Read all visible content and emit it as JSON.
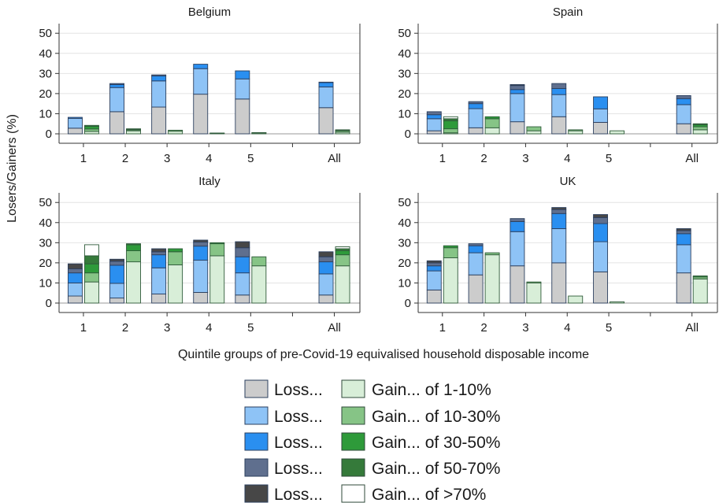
{
  "chart_data": {
    "type": "bar",
    "subtype": "stacked-grouped",
    "ylabel": "Losers/Gainers (%)",
    "xlabel": "Quintile groups of pre-Covid-19 equivalised household disposable income",
    "categories": [
      "1",
      "2",
      "3",
      "4",
      "5",
      "All"
    ],
    "ylim": [
      0,
      54
    ],
    "yticks": [
      0,
      10,
      20,
      30,
      40,
      50
    ],
    "grid": true,
    "legend_position": "bottom",
    "loss_legend": [
      {
        "label": "Loss...",
        "color": "#cccccc"
      },
      {
        "label": "Loss...",
        "color": "#8ec3f6"
      },
      {
        "label": "Loss...",
        "color": "#2a8ff0"
      },
      {
        "label": "Loss...",
        "color": "#5f6f8e"
      },
      {
        "label": "Loss...",
        "color": "#474747"
      }
    ],
    "gain_legend": [
      {
        "label": "Gain... of 1-10%",
        "color": "#d8eed8"
      },
      {
        "label": "Gain... of 10-30%",
        "color": "#86c486"
      },
      {
        "label": "Gain... of 30-50%",
        "color": "#2e9a3a"
      },
      {
        "label": "Gain... of 50-70%",
        "color": "#357a3a"
      },
      {
        "label": "Gain... of >70%",
        "color": "#ffffff"
      }
    ],
    "panels": [
      {
        "title": "Belgium",
        "loss": [
          [
            2.8,
            4.9,
            0.5,
            0,
            0
          ],
          [
            11,
            12,
            1.5,
            0.5,
            0
          ],
          [
            13.3,
            13,
            2.5,
            0.5,
            0
          ],
          [
            19.7,
            12.7,
            2.2,
            0,
            0
          ],
          [
            17.3,
            10,
            4,
            0,
            0
          ],
          [
            13,
            10.3,
            2.2,
            0.2,
            0
          ]
        ],
        "gain": [
          [
            1.2,
            1.2,
            1.3,
            0.5,
            0
          ],
          [
            1.5,
            0.5,
            0.3,
            0.2,
            0
          ],
          [
            1.3,
            0.5,
            0,
            0,
            0
          ],
          [
            0.3,
            0.1,
            0,
            0,
            0
          ],
          [
            0.5,
            0.1,
            0,
            0,
            0
          ],
          [
            0.8,
            0.7,
            0.3,
            0.2,
            0
          ]
        ]
      },
      {
        "title": "Spain",
        "loss": [
          [
            1.5,
            6,
            2,
            1.5,
            0
          ],
          [
            3,
            9.5,
            2.5,
            1,
            0
          ],
          [
            6,
            14,
            2,
            2,
            0.5
          ],
          [
            8.5,
            11,
            3,
            2.5,
            0
          ],
          [
            5.7,
            6.7,
            6,
            0,
            0
          ],
          [
            5,
            9.5,
            3,
            1.5,
            0
          ]
        ],
        "gain": [
          [
            0.5,
            2,
            4,
            1,
            1
          ],
          [
            3,
            4.5,
            1,
            0,
            0
          ],
          [
            1.5,
            2,
            0,
            0,
            0
          ],
          [
            1.5,
            0.5,
            0,
            0,
            0
          ],
          [
            1.5,
            0,
            0,
            0,
            0
          ],
          [
            2,
            1.5,
            1,
            0.5,
            0
          ]
        ]
      },
      {
        "title": "Italy",
        "loss": [
          [
            3.5,
            6.5,
            5,
            2,
            2.5
          ],
          [
            2.5,
            7.3,
            9,
            2,
            1
          ],
          [
            4.5,
            13,
            6.5,
            1.5,
            1.5
          ],
          [
            5.3,
            16,
            7,
            2,
            1
          ],
          [
            4,
            11,
            8,
            4.5,
            3
          ],
          [
            4,
            10.5,
            6,
            2.5,
            2.5
          ]
        ],
        "gain": [
          [
            10.5,
            4.5,
            4.5,
            4,
            5.5
          ],
          [
            20.5,
            5.5,
            3,
            0.5,
            0
          ],
          [
            19,
            6.5,
            1.5,
            0,
            0
          ],
          [
            23.5,
            6,
            0.5,
            0,
            0
          ],
          [
            18.5,
            4.5,
            0,
            0,
            0
          ],
          [
            18.5,
            5.5,
            2,
            1,
            1
          ]
        ]
      },
      {
        "title": "UK",
        "loss": [
          [
            6.5,
            9.5,
            2.5,
            1.5,
            1
          ],
          [
            14,
            11,
            3.5,
            1,
            0
          ],
          [
            18.5,
            17,
            5,
            1.5,
            0
          ],
          [
            20,
            17,
            7.5,
            2,
            1
          ],
          [
            15.5,
            15,
            9,
            3,
            1.5
          ],
          [
            15,
            14,
            5.5,
            1.5,
            1
          ]
        ],
        "gain": [
          [
            22.5,
            5,
            1,
            0,
            0
          ],
          [
            24,
            1,
            0,
            0,
            0
          ],
          [
            10,
            0.5,
            0,
            0,
            0
          ],
          [
            3.5,
            0,
            0,
            0,
            0
          ],
          [
            0.6,
            0,
            0,
            0,
            0
          ],
          [
            12,
            1,
            0.5,
            0,
            0
          ]
        ]
      }
    ]
  }
}
